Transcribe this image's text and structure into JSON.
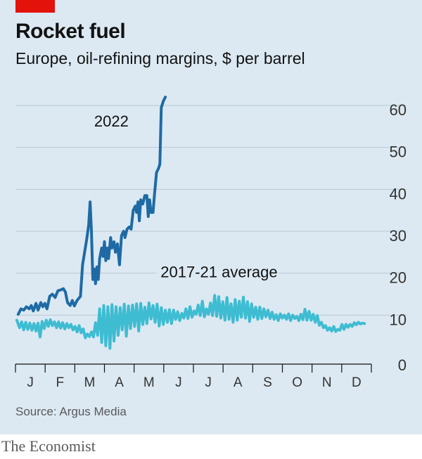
{
  "header": {
    "title": "Rocket fuel",
    "subtitle": "Europe, oil-refining margins, $ per barrel"
  },
  "source": "Source: Argus Media",
  "footer": "The Economist",
  "colors": {
    "background": "#dce9f2",
    "tag": "#e3120b",
    "series_2022": "#1f6aa5",
    "series_avg": "#3ebcd2",
    "grid": "#b7c7d3",
    "axis": "#121212"
  },
  "chart_data": {
    "type": "line",
    "ylim": [
      0,
      60
    ],
    "yticks": [
      0,
      10,
      20,
      30,
      40,
      50,
      60
    ],
    "y_axis_position": "right",
    "grid": true,
    "months": [
      "J",
      "F",
      "M",
      "A",
      "M",
      "J",
      "J",
      "A",
      "S",
      "O",
      "N",
      "D"
    ],
    "x_unit": "week of year",
    "series": [
      {
        "name": "2022",
        "label_week": 11.5,
        "label_value": 55,
        "points": [
          [
            0.4,
            10.2
          ],
          [
            0.8,
            11.5
          ],
          [
            1.2,
            11.2
          ],
          [
            1.6,
            12.0
          ],
          [
            2.0,
            11.5
          ],
          [
            2.3,
            12.3
          ],
          [
            2.6,
            11.0
          ],
          [
            3.0,
            12.8
          ],
          [
            3.3,
            11.2
          ],
          [
            3.7,
            13.0
          ],
          [
            4.0,
            12.0
          ],
          [
            4.3,
            12.8
          ],
          [
            4.6,
            11.5
          ],
          [
            5.0,
            14.5
          ],
          [
            5.4,
            15.0
          ],
          [
            5.8,
            14.2
          ],
          [
            6.2,
            15.8
          ],
          [
            6.6,
            16.0
          ],
          [
            7.0,
            16.3
          ],
          [
            7.3,
            15.5
          ],
          [
            7.6,
            13.0
          ],
          [
            8.0,
            12.3
          ],
          [
            8.3,
            13.5
          ],
          [
            8.6,
            12.2
          ],
          [
            9.0,
            13.5
          ],
          [
            9.5,
            14.5
          ],
          [
            9.8,
            22.0
          ],
          [
            10.1,
            25.0
          ],
          [
            10.4,
            28.0
          ],
          [
            10.7,
            31.5
          ],
          [
            10.9,
            37.0
          ],
          [
            11.1,
            30.0
          ],
          [
            11.3,
            18.5
          ],
          [
            11.5,
            21.0
          ],
          [
            11.7,
            17.5
          ],
          [
            11.9,
            21.5
          ],
          [
            12.1,
            18.5
          ],
          [
            12.3,
            23.5
          ],
          [
            12.6,
            26.0
          ],
          [
            12.8,
            24.0
          ],
          [
            13.0,
            27.5
          ],
          [
            13.2,
            23.0
          ],
          [
            13.4,
            26.0
          ],
          [
            13.6,
            23.5
          ],
          [
            13.9,
            28.5
          ],
          [
            14.1,
            26.0
          ],
          [
            14.4,
            27.5
          ],
          [
            14.6,
            25.0
          ],
          [
            14.9,
            27.0
          ],
          [
            15.2,
            22.0
          ],
          [
            15.5,
            29.0
          ],
          [
            15.8,
            30.0
          ],
          [
            16.0,
            28.5
          ],
          [
            16.3,
            30.5
          ],
          [
            16.6,
            31.0
          ],
          [
            16.9,
            30.5
          ],
          [
            17.2,
            35.0
          ],
          [
            17.5,
            36.0
          ],
          [
            17.7,
            34.5
          ],
          [
            17.9,
            37.0
          ],
          [
            18.1,
            32.5
          ],
          [
            18.3,
            37.5
          ],
          [
            18.6,
            36.5
          ],
          [
            18.9,
            38.5
          ],
          [
            19.2,
            38.5
          ],
          [
            19.4,
            33.5
          ],
          [
            19.6,
            37.5
          ],
          [
            19.8,
            34.5
          ],
          [
            20.1,
            34.5
          ],
          [
            20.3,
            38.5
          ],
          [
            20.6,
            44.0
          ],
          [
            20.9,
            45.0
          ],
          [
            21.1,
            46.0
          ],
          [
            21.3,
            59.5
          ],
          [
            21.6,
            61.0
          ],
          [
            21.9,
            62.0
          ]
        ]
      },
      {
        "name": "2017-21 average",
        "label_week": 21.2,
        "label_value": 19,
        "points": [
          [
            0.2,
            8.8
          ],
          [
            0.6,
            7.0
          ],
          [
            0.9,
            8.4
          ],
          [
            1.2,
            6.5
          ],
          [
            1.5,
            8.3
          ],
          [
            1.8,
            6.6
          ],
          [
            2.1,
            8.1
          ],
          [
            2.4,
            6.4
          ],
          [
            2.7,
            8.0
          ],
          [
            3.0,
            6.2
          ],
          [
            3.3,
            8.1
          ],
          [
            3.6,
            4.8
          ],
          [
            3.9,
            8.5
          ],
          [
            4.2,
            6.8
          ],
          [
            4.5,
            8.8
          ],
          [
            4.8,
            7.3
          ],
          [
            5.1,
            8.9
          ],
          [
            5.4,
            7.5
          ],
          [
            5.7,
            8.4
          ],
          [
            6.0,
            7.0
          ],
          [
            6.3,
            8.4
          ],
          [
            6.6,
            6.9
          ],
          [
            6.9,
            8.2
          ],
          [
            7.2,
            6.7
          ],
          [
            7.5,
            8.0
          ],
          [
            7.8,
            7.0
          ],
          [
            8.1,
            7.8
          ],
          [
            8.4,
            6.5
          ],
          [
            8.7,
            7.3
          ],
          [
            9.0,
            6.0
          ],
          [
            9.3,
            7.5
          ],
          [
            9.6,
            5.8
          ],
          [
            9.9,
            6.7
          ],
          [
            10.2,
            4.6
          ],
          [
            10.5,
            5.5
          ],
          [
            10.8,
            4.9
          ],
          [
            11.1,
            6.0
          ],
          [
            11.4,
            4.8
          ],
          [
            11.7,
            8.2
          ],
          [
            12.0,
            5.2
          ],
          [
            12.3,
            11.5
          ],
          [
            12.6,
            3.5
          ],
          [
            12.9,
            12.3
          ],
          [
            13.2,
            2.7
          ],
          [
            13.5,
            12.0
          ],
          [
            13.8,
            2.1
          ],
          [
            14.1,
            12.5
          ],
          [
            14.4,
            3.8
          ],
          [
            14.7,
            12.0
          ],
          [
            15.0,
            5.2
          ],
          [
            15.3,
            11.8
          ],
          [
            15.6,
            6.5
          ],
          [
            15.9,
            12.6
          ],
          [
            16.2,
            5.0
          ],
          [
            16.5,
            12.2
          ],
          [
            16.8,
            6.8
          ],
          [
            17.1,
            12.4
          ],
          [
            17.4,
            7.3
          ],
          [
            17.7,
            12.7
          ],
          [
            18.0,
            6.2
          ],
          [
            18.3,
            12.8
          ],
          [
            18.6,
            7.8
          ],
          [
            18.9,
            11.9
          ],
          [
            19.2,
            8.0
          ],
          [
            19.5,
            12.9
          ],
          [
            19.8,
            9.1
          ],
          [
            20.1,
            12.3
          ],
          [
            20.4,
            8.3
          ],
          [
            20.7,
            12.6
          ],
          [
            21.0,
            7.4
          ],
          [
            21.3,
            11.8
          ],
          [
            21.6,
            7.8
          ],
          [
            21.9,
            11.2
          ],
          [
            22.2,
            8.3
          ],
          [
            22.5,
            11.3
          ],
          [
            22.8,
            8.0
          ],
          [
            23.1,
            11.2
          ],
          [
            23.4,
            9.0
          ],
          [
            23.7,
            10.8
          ],
          [
            24.0,
            8.7
          ],
          [
            24.3,
            10.4
          ],
          [
            24.6,
            9.3
          ],
          [
            24.9,
            11.5
          ],
          [
            25.2,
            9.2
          ],
          [
            25.5,
            12.0
          ],
          [
            25.8,
            9.5
          ],
          [
            26.1,
            11.0
          ],
          [
            26.4,
            10.2
          ],
          [
            26.7,
            12.4
          ],
          [
            27.0,
            9.9
          ],
          [
            27.3,
            13.3
          ],
          [
            27.6,
            9.6
          ],
          [
            27.9,
            11.5
          ],
          [
            28.2,
            10.2
          ],
          [
            28.5,
            12.9
          ],
          [
            28.8,
            9.9
          ],
          [
            29.1,
            14.7
          ],
          [
            29.4,
            9.7
          ],
          [
            29.7,
            14.4
          ],
          [
            30.0,
            9.3
          ],
          [
            30.3,
            13.2
          ],
          [
            30.6,
            8.8
          ],
          [
            30.9,
            14.2
          ],
          [
            31.2,
            9.0
          ],
          [
            31.5,
            12.7
          ],
          [
            31.8,
            8.3
          ],
          [
            32.1,
            13.7
          ],
          [
            32.4,
            8.8
          ],
          [
            32.7,
            13.3
          ],
          [
            33.0,
            9.5
          ],
          [
            33.3,
            14.3
          ],
          [
            33.6,
            9.3
          ],
          [
            33.9,
            13.2
          ],
          [
            34.2,
            8.5
          ],
          [
            34.5,
            12.7
          ],
          [
            34.8,
            9.5
          ],
          [
            35.1,
            11.9
          ],
          [
            35.4,
            9.0
          ],
          [
            35.7,
            11.9
          ],
          [
            36.0,
            9.2
          ],
          [
            36.3,
            11.5
          ],
          [
            36.6,
            9.6
          ],
          [
            36.9,
            11.2
          ],
          [
            37.2,
            9.2
          ],
          [
            37.5,
            10.7
          ],
          [
            37.8,
            9.0
          ],
          [
            38.1,
            10.1
          ],
          [
            38.4,
            8.7
          ],
          [
            38.7,
            10.3
          ],
          [
            39.0,
            9.3
          ],
          [
            39.3,
            10.0
          ],
          [
            39.6,
            9.0
          ],
          [
            39.9,
            10.3
          ],
          [
            40.2,
            8.7
          ],
          [
            40.5,
            10.0
          ],
          [
            40.8,
            9.2
          ],
          [
            41.1,
            9.7
          ],
          [
            41.4,
            8.7
          ],
          [
            41.7,
            10.2
          ],
          [
            42.0,
            8.9
          ],
          [
            42.3,
            11.4
          ],
          [
            42.6,
            8.8
          ],
          [
            42.9,
            10.9
          ],
          [
            43.2,
            8.8
          ],
          [
            43.5,
            10.2
          ],
          [
            43.8,
            8.3
          ],
          [
            44.1,
            9.9
          ],
          [
            44.4,
            7.6
          ],
          [
            44.7,
            8.3
          ],
          [
            45.0,
            7.0
          ],
          [
            45.3,
            7.5
          ],
          [
            45.6,
            6.4
          ],
          [
            45.9,
            7.0
          ],
          [
            46.2,
            6.2
          ],
          [
            46.5,
            7.3
          ],
          [
            46.8,
            6.1
          ],
          [
            47.1,
            6.6
          ],
          [
            47.4,
            6.4
          ],
          [
            47.7,
            7.8
          ],
          [
            48.0,
            6.6
          ],
          [
            48.3,
            7.8
          ],
          [
            48.6,
            7.1
          ],
          [
            48.9,
            7.8
          ],
          [
            49.2,
            7.3
          ],
          [
            49.5,
            8.2
          ],
          [
            49.8,
            7.7
          ],
          [
            50.1,
            8.3
          ],
          [
            50.4,
            7.9
          ],
          [
            50.7,
            8.1
          ],
          [
            51.0,
            8.0
          ]
        ]
      }
    ]
  }
}
